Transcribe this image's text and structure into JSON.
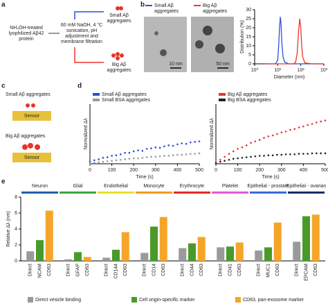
{
  "panel_labels": [
    "a",
    "b",
    "c",
    "d",
    "e"
  ],
  "diagram_a": {
    "source": [
      "NH₄OH-treated",
      "lyophilized Aβ42",
      "protein"
    ],
    "process": [
      "60 mM NaOH, 4 °C",
      "sonication, pH",
      "adjustment and",
      "membrane filtration"
    ],
    "small": [
      "Small Aβ",
      "aggregates"
    ],
    "big": [
      "Big Aβ",
      "aggregates"
    ]
  },
  "panel_b_images": {
    "small": [
      "Small Aβ",
      "aggregates"
    ],
    "big": [
      "Big Aβ",
      "aggregates"
    ],
    "small_scale": "10 nm",
    "big_scale": "50 nm"
  },
  "diagram_c": {
    "small": "Small Aβ aggregates",
    "big": "Big Aβ aggregates",
    "sensor": "Sensor"
  },
  "chart_data": [
    {
      "type": "line",
      "ylabel": "Distribution (%)",
      "xlabel": "Diameter (nm)",
      "log_x": true,
      "x": [
        3,
        5,
        8,
        10,
        11,
        12,
        13,
        14,
        15,
        17,
        20,
        30,
        50,
        60,
        70,
        80,
        90,
        100,
        110,
        120,
        150,
        300,
        1000
      ],
      "series": [
        {
          "color": "#2b4fd8",
          "values": [
            0,
            0,
            0,
            2,
            10,
            20,
            26,
            22,
            12,
            4,
            1,
            0,
            0,
            0,
            0,
            0,
            0,
            0,
            0,
            0,
            0,
            0,
            0
          ]
        },
        {
          "color": "#e8352b",
          "values": [
            0,
            0,
            0,
            0,
            0,
            0,
            0,
            0,
            0,
            0,
            0,
            0,
            0,
            1,
            6,
            18,
            25,
            20,
            10,
            4,
            0.5,
            0,
            0
          ]
        }
      ],
      "xlim": [
        1,
        1000
      ],
      "xticks": [
        {
          "value": 1,
          "label": "10⁰"
        },
        {
          "value": 10,
          "label": "10¹"
        },
        {
          "value": 100,
          "label": "10²"
        },
        {
          "value": 1000,
          "label": "10³"
        }
      ],
      "ylim": [
        0,
        30
      ],
      "yticks": [
        0,
        5,
        10,
        15,
        20,
        25,
        30
      ]
    },
    {
      "type": "scatter",
      "ylabel": "Normalized Δλ",
      "xlabel": "Time (s)",
      "legend": "upper left",
      "x": [
        0,
        20,
        40,
        60,
        80,
        100,
        120,
        140,
        160,
        180,
        200,
        220,
        240,
        260,
        280,
        300,
        320,
        340,
        360,
        380,
        400,
        420,
        440,
        460,
        480,
        500
      ],
      "series": [
        {
          "name": "Small Aβ aggregates",
          "color": "#2b4fd8",
          "values": [
            0.04,
            0.07,
            0.09,
            0.12,
            0.13,
            0.16,
            0.17,
            0.19,
            0.22,
            0.22,
            0.25,
            0.27,
            0.26,
            0.3,
            0.31,
            0.33,
            0.32,
            0.35,
            0.37,
            0.36,
            0.39,
            0.41,
            0.4,
            0.43,
            0.44,
            0.45
          ]
        },
        {
          "name": "Small BSA aggregates",
          "color": "#999999",
          "values": [
            0.01,
            0.02,
            0.03,
            0.04,
            0.05,
            0.06,
            0.07,
            0.08,
            0.09,
            0.1,
            0.11,
            0.11,
            0.12,
            0.13,
            0.14,
            0.14,
            0.15,
            0.16,
            0.16,
            0.17,
            0.18,
            0.18,
            0.19,
            0.2,
            0.2,
            0.21
          ]
        }
      ],
      "xlim": [
        0,
        500
      ],
      "xticks": [
        0,
        100,
        200,
        300,
        400,
        500
      ],
      "ylim": [
        0,
        1.2
      ]
    },
    {
      "type": "scatter",
      "ylabel": "Normalized Δλ",
      "xlabel": "Time (s)",
      "legend": "upper left",
      "x": [
        0,
        20,
        40,
        60,
        80,
        100,
        120,
        140,
        160,
        180,
        200,
        220,
        240,
        260,
        280,
        300,
        320,
        340,
        360,
        380,
        400,
        420,
        440,
        460,
        480,
        500
      ],
      "series": [
        {
          "name": "Big Aβ aggregates",
          "color": "#e8352b",
          "values": [
            0.02,
            0.08,
            0.14,
            0.2,
            0.25,
            0.3,
            0.33,
            0.37,
            0.42,
            0.45,
            0.48,
            0.52,
            0.55,
            0.57,
            0.6,
            0.63,
            0.65,
            0.68,
            0.7,
            0.73,
            0.75,
            0.78,
            0.8,
            0.83,
            0.85,
            0.87
          ]
        },
        {
          "name": "Big BSA aggregates",
          "color": "#222222",
          "values": [
            0.01,
            0.04,
            0.06,
            0.08,
            0.1,
            0.11,
            0.12,
            0.13,
            0.14,
            0.15,
            0.16,
            0.16,
            0.17,
            0.17,
            0.18,
            0.18,
            0.19,
            0.19,
            0.19,
            0.2,
            0.2,
            0.2,
            0.21,
            0.21,
            0.21,
            0.21
          ]
        }
      ],
      "xlim": [
        0,
        500
      ],
      "xticks": [
        0,
        100,
        200,
        300,
        400,
        500
      ],
      "ylim": [
        0,
        1.2
      ]
    },
    {
      "type": "bar",
      "ylabel": "Relative Δλ (nm)",
      "ylim": [
        0,
        8
      ],
      "yticks": [
        0,
        2,
        4,
        6,
        8
      ],
      "groups": [
        {
          "name": "Neuron",
          "color": "#1f5fa8",
          "categories": [
            "Direct",
            "NCAM",
            "CD63"
          ]
        },
        {
          "name": "Glial",
          "color": "#3aa639",
          "categories": [
            "Direct",
            "GFAP",
            "CD63"
          ]
        },
        {
          "name": "Endothelial",
          "color": "#e8e02a",
          "categories": [
            "Direct",
            "CD144",
            "CD63"
          ]
        },
        {
          "name": "Monocyte",
          "color": "#f39a1e",
          "categories": [
            "Direct",
            "CD14",
            "CD63"
          ]
        },
        {
          "name": "Erythrocyte",
          "color": "#e02a2a",
          "categories": [
            "Direct",
            "CD44",
            "CD63"
          ]
        },
        {
          "name": "Platelet",
          "color": "#e05ad8",
          "categories": [
            "Direct",
            "CD41",
            "CD63"
          ]
        },
        {
          "name": "Epithelial - prostate",
          "color": "#3a6ad8",
          "categories": [
            "Direct",
            "MUC1",
            "CD63"
          ]
        },
        {
          "name": "Epithelial - ovarian",
          "color": "#1a2a6a",
          "categories": [
            "Direct",
            "EPCAM",
            "CD63"
          ]
        }
      ],
      "series": [
        {
          "name": "Direct vesicle binding",
          "color": "#9a9a9a",
          "values": [
            1.2,
            0.2,
            0.4,
            1.0,
            1.6,
            1.7,
            1.3,
            2.4
          ]
        },
        {
          "name": "Cell origin-specific marker",
          "color": "#4a9a2a",
          "values": [
            2.6,
            1.1,
            1.4,
            4.3,
            2.2,
            1.8,
            1.7,
            5.6
          ]
        },
        {
          "name": "CD63, pan-exosome marker",
          "color": "#f5a52a",
          "values": [
            6.3,
            0.5,
            3.6,
            5.5,
            3.0,
            2.3,
            4.8,
            5.8
          ]
        }
      ]
    }
  ]
}
